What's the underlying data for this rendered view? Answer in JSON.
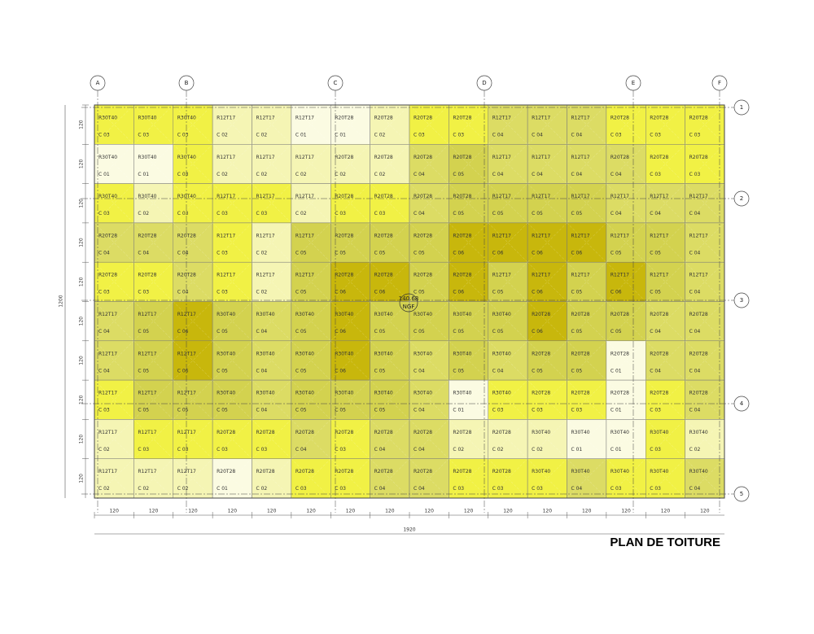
{
  "plan": {
    "title": "PLAN DE TOITURE",
    "column_axes": [
      "A",
      "B",
      "C",
      "D",
      "E",
      "F"
    ],
    "row_axes": [
      "1",
      "2",
      "3",
      "4",
      "5"
    ],
    "dimensions": {
      "cell": "120",
      "total_width": "1920",
      "total_height": "1200"
    },
    "elevation": {
      "value": "140.68",
      "ref": "NGF"
    },
    "class_colors": {
      "C 01": "#fbfbe2",
      "C 02": "#f5f5b4",
      "C 03": "#f1f145",
      "C 04": "#dcdc64",
      "C 05": "#d3d24f",
      "C 06": "#c8b70c"
    },
    "rows": [
      {
        "codes": [
          "R30T40",
          "R30T40",
          "R30T40",
          "R12T17",
          "R12T17",
          "R12T17",
          "R20T28",
          "R20T28",
          "R20T28",
          "R20T28",
          "R12T17",
          "R12T17",
          "R12T17",
          "R20T28",
          "R20T28",
          "R20T28"
        ],
        "classes": [
          "C 03",
          "C 03",
          "C 03",
          "C 02",
          "C 02",
          "C 01",
          "C 01",
          "C 02",
          "C 03",
          "C 03",
          "C 04",
          "C 04",
          "C 04",
          "C 03",
          "C 03",
          "C 03"
        ]
      },
      {
        "codes": [
          "R30T40",
          "R30T40",
          "R30T40",
          "R12T17",
          "R12T17",
          "R12T17",
          "R20T28",
          "R20T28",
          "R20T28",
          "R20T28",
          "R12T17",
          "R12T17",
          "R12T17",
          "R20T28",
          "R20T28",
          "R20T28"
        ],
        "classes": [
          "C 01",
          "C 01",
          "C 03",
          "C 02",
          "C 02",
          "C 02",
          "C 02",
          "C 02",
          "C 04",
          "C 05",
          "C 04",
          "C 04",
          "C 04",
          "C 04",
          "C 03",
          "C 03"
        ]
      },
      {
        "codes": [
          "R30T40",
          "R30T40",
          "R30T40",
          "R12T17",
          "R12T17",
          "R12T17",
          "R20T28",
          "R20T28",
          "R20T28",
          "R20T28",
          "R12T17",
          "R12T17",
          "R12T17",
          "R12T17",
          "R12T17",
          "R12T17"
        ],
        "classes": [
          "C 03",
          "C 02",
          "C 03",
          "C 03",
          "C 03",
          "C 02",
          "C 03",
          "C 03",
          "C 04",
          "C 05",
          "C 05",
          "C 05",
          "C 05",
          "C 04",
          "C 04",
          "C 04"
        ]
      },
      {
        "codes": [
          "R20T28",
          "R20T28",
          "R20T28",
          "R12T17",
          "R12T17",
          "R12T17",
          "R20T28",
          "R20T28",
          "R20T28",
          "R20T28",
          "R12T17",
          "R12T17",
          "R12T17",
          "R12T17",
          "R12T17",
          "R12T17"
        ],
        "classes": [
          "C 04",
          "C 04",
          "C 04",
          "C 03",
          "C 02",
          "C 05",
          "C 05",
          "C 05",
          "C 05",
          "C 06",
          "C 06",
          "C 06",
          "C 06",
          "C 05",
          "C 05",
          "C 04"
        ]
      },
      {
        "codes": [
          "R20T28",
          "R20T28",
          "R20T28",
          "R12T17",
          "R12T17",
          "R12T17",
          "R20T28",
          "R20T28",
          "R20T28",
          "R20T28",
          "R12T17",
          "R12T17",
          "R12T17",
          "R12T17",
          "R12T17",
          "R12T17"
        ],
        "classes": [
          "C 03",
          "C 03",
          "C 04",
          "C 03",
          "C 02",
          "C 05",
          "C 06",
          "C 06",
          "C 05",
          "C 06",
          "C 05",
          "C 06",
          "C 05",
          "C 06",
          "C 05",
          "C 04"
        ]
      },
      {
        "codes": [
          "R12T17",
          "R12T17",
          "R12T17",
          "R30T40",
          "R30T40",
          "R30T40",
          "R30T40",
          "R30T40",
          "R30T40",
          "R30T40",
          "R30T40",
          "R20T28",
          "R20T28",
          "R20T28",
          "R20T28",
          "R20T28"
        ],
        "classes": [
          "C 04",
          "C 05",
          "C 06",
          "C 05",
          "C 04",
          "C 05",
          "C 06",
          "C 05",
          "C 05",
          "C 05",
          "C 05",
          "C 06",
          "C 05",
          "C 05",
          "C 04",
          "C 04"
        ]
      },
      {
        "codes": [
          "R12T17",
          "R12T17",
          "R12T17",
          "R30T40",
          "R30T40",
          "R30T40",
          "R30T40",
          "R30T40",
          "R30T40",
          "R30T40",
          "R30T40",
          "R20T28",
          "R20T28",
          "R20T28",
          "R20T28",
          "R20T28"
        ],
        "classes": [
          "C 04",
          "C 05",
          "C 06",
          "C 05",
          "C 04",
          "C 05",
          "C 06",
          "C 05",
          "C 04",
          "C 05",
          "C 04",
          "C 05",
          "C 05",
          "C 01",
          "C 04",
          "C 04"
        ]
      },
      {
        "codes": [
          "R12T17",
          "R12T17",
          "R12T17",
          "R30T40",
          "R30T40",
          "R30T40",
          "R30T40",
          "R30T40",
          "R30T40",
          "R30T40",
          "R30T40",
          "R20T28",
          "R20T28",
          "R20T28",
          "R20T28",
          "R20T28"
        ],
        "classes": [
          "C 03",
          "C 05",
          "C 05",
          "C 05",
          "C 04",
          "C 05",
          "C 05",
          "C 05",
          "C 04",
          "C 01",
          "C 03",
          "C 03",
          "C 03",
          "C 01",
          "C 03",
          "C 04"
        ]
      },
      {
        "codes": [
          "R12T17",
          "R12T17",
          "R12T17",
          "R20T28",
          "R20T28",
          "R20T28",
          "R20T28",
          "R20T28",
          "R20T28",
          "R20T28",
          "R20T28",
          "R30T40",
          "R30T40",
          "R30T40",
          "R30T40",
          "R30T40"
        ],
        "classes": [
          "C 02",
          "C 03",
          "C 03",
          "C 03",
          "C 03",
          "C 04",
          "C 03",
          "C 04",
          "C 04",
          "C 02",
          "C 02",
          "C 02",
          "C 01",
          "C 01",
          "C 03",
          "C 02"
        ]
      },
      {
        "codes": [
          "R12T17",
          "R12T17",
          "R12T17",
          "R20T28",
          "R20T28",
          "R20T28",
          "R20T28",
          "R20T28",
          "R20T28",
          "R20T28",
          "R20T28",
          "R30T40",
          "R30T40",
          "R30T40",
          "R30T40",
          "R30T40"
        ],
        "classes": [
          "C 02",
          "C 02",
          "C 02",
          "C 01",
          "C 02",
          "C 03",
          "C 03",
          "C 04",
          "C 04",
          "C 03",
          "C 03",
          "C 03",
          "C 04",
          "C 03",
          "C 03",
          "C 04"
        ]
      }
    ]
  }
}
